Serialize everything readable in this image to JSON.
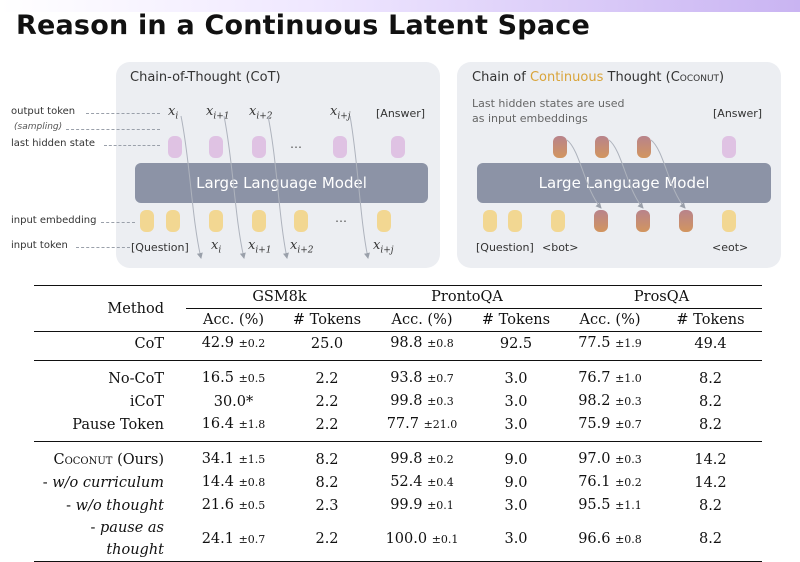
{
  "slide": {
    "title": "Reason in a Continuous Latent Space"
  },
  "cot_panel": {
    "title": "Chain-of-Thought (CoT)",
    "llm_label": "Large Language Model",
    "side_labels": [
      "output token",
      "(sampling)",
      "last hidden state",
      "input embedding",
      "input token"
    ],
    "question_token": "[Question]",
    "answer_token": "[Answer]",
    "ellipsis": "…"
  },
  "coconut_panel": {
    "title_a": "Chain of ",
    "title_hl": "Continuous",
    "title_b": " Thought (",
    "title_sc": "Coconut",
    "title_c": ")",
    "note_1": "Last hidden states are used",
    "note_2": "as input embeddings",
    "llm_label": "Large Language Model",
    "answer_token": "[Answer]",
    "question_token": "[Question]",
    "bot_token": "<bot>",
    "eot_token": "<eot>"
  },
  "colors": {
    "yellow_token": "#f2d792",
    "purple_token": "#dfc2e3",
    "llm": "#8c93a6",
    "accent": "#d9a43a"
  },
  "table": {
    "method_header": "Method",
    "datasets": [
      "GSM8k",
      "ProntoQA",
      "ProsQA"
    ],
    "subheaders": [
      "Acc. (%)",
      "# Tokens",
      "Acc. (%)",
      "# Tokens",
      "Acc. (%)",
      "# Tokens"
    ],
    "groups": [
      [
        {
          "method": "CoT",
          "style": "",
          "cells": [
            [
              "42.9",
              "±0.2"
            ],
            [
              "25.0",
              ""
            ],
            [
              "98.8",
              "±0.8"
            ],
            [
              "92.5",
              ""
            ],
            [
              "77.5",
              "±1.9"
            ],
            [
              "49.4",
              ""
            ]
          ]
        }
      ],
      [
        {
          "method": "No-CoT",
          "style": "",
          "cells": [
            [
              "16.5",
              "±0.5"
            ],
            [
              "2.2",
              ""
            ],
            [
              "93.8",
              "±0.7"
            ],
            [
              "3.0",
              ""
            ],
            [
              "76.7",
              "±1.0"
            ],
            [
              "8.2",
              ""
            ]
          ]
        },
        {
          "method": "iCoT",
          "style": "",
          "cells": [
            [
              "30.0*",
              ""
            ],
            [
              "2.2",
              ""
            ],
            [
              "99.8",
              "±0.3"
            ],
            [
              "3.0",
              ""
            ],
            [
              "98.2",
              "±0.3"
            ],
            [
              "8.2",
              ""
            ]
          ]
        },
        {
          "method": "Pause Token",
          "style": "",
          "cells": [
            [
              "16.4",
              "±1.8"
            ],
            [
              "2.2",
              ""
            ],
            [
              "77.7",
              "±21.0"
            ],
            [
              "3.0",
              ""
            ],
            [
              "75.9",
              "±0.7"
            ],
            [
              "8.2",
              ""
            ]
          ]
        }
      ],
      [
        {
          "method_sc": "Coconut",
          "method_tail": " (Ours)",
          "style": "sc",
          "cells": [
            [
              "34.1",
              "±1.5"
            ],
            [
              "8.2",
              ""
            ],
            [
              "99.8",
              "±0.2"
            ],
            [
              "9.0",
              ""
            ],
            [
              "97.0",
              "±0.3"
            ],
            [
              "14.2",
              ""
            ]
          ]
        },
        {
          "method_pre": "- ",
          "method_it": "w/o curriculum",
          "style": "it",
          "cells": [
            [
              "14.4",
              "±0.8"
            ],
            [
              "8.2",
              ""
            ],
            [
              "52.4",
              "±0.4"
            ],
            [
              "9.0",
              ""
            ],
            [
              "76.1",
              "±0.2"
            ],
            [
              "14.2",
              ""
            ]
          ]
        },
        {
          "method_pre": "- ",
          "method_it": "w/o thought",
          "style": "it",
          "cells": [
            [
              "21.6",
              "±0.5"
            ],
            [
              "2.3",
              ""
            ],
            [
              "99.9",
              "±0.1"
            ],
            [
              "3.0",
              ""
            ],
            [
              "95.5",
              "±1.1"
            ],
            [
              "8.2",
              ""
            ]
          ]
        },
        {
          "method_pre": "- ",
          "method_it": "pause as thought",
          "style": "it",
          "cells": [
            [
              "24.1",
              "±0.7"
            ],
            [
              "2.2",
              ""
            ],
            [
              "100.0",
              "±0.1"
            ],
            [
              "3.0",
              ""
            ],
            [
              "96.6",
              "±0.8"
            ],
            [
              "8.2",
              ""
            ]
          ]
        }
      ]
    ]
  }
}
